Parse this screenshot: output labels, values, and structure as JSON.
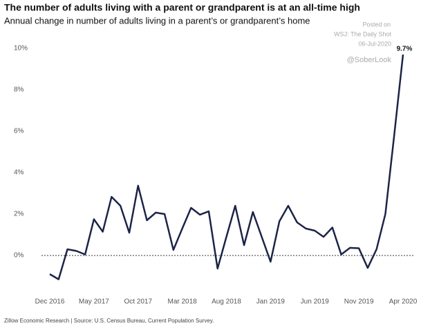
{
  "chart_data": {
    "type": "line",
    "title": "The number of adults living with a parent or grandparent is at an all-time high",
    "subtitle": "Annual change in number of adults living in a parent’s or grandparent’s home",
    "watermark": [
      "Posted on",
      "WSJ: The Daily Shot",
      "06-Jul-2020",
      "@SoberLook"
    ],
    "source": "Zillow Economic Research | Source: U.S. Census Bureau, Current Population Survey.",
    "categories": [
      "Dec 2016",
      null,
      null,
      null,
      null,
      "May 2017",
      null,
      null,
      null,
      null,
      "Oct 2017",
      null,
      null,
      null,
      null,
      "Mar 2018",
      null,
      null,
      null,
      null,
      "Aug 2018",
      null,
      null,
      null,
      null,
      "Jan 2019",
      null,
      null,
      null,
      null,
      "Jun 2019",
      null,
      null,
      null,
      null,
      "Nov 2019",
      null,
      null,
      null,
      null,
      "Apr 2020"
    ],
    "series": [
      {
        "name": "Annual change",
        "color": "#1b2447",
        "values": [
          -0.9,
          -1.15,
          0.3,
          0.22,
          0.05,
          1.75,
          1.15,
          2.83,
          2.4,
          1.1,
          3.37,
          1.7,
          2.07,
          2.0,
          0.27,
          1.3,
          2.3,
          1.97,
          2.13,
          -0.63,
          0.9,
          2.4,
          0.5,
          2.1,
          0.9,
          -0.3,
          1.65,
          2.4,
          1.6,
          1.3,
          1.2,
          0.9,
          1.35,
          0.05,
          0.37,
          0.35,
          -0.6,
          0.3,
          2.0,
          5.8,
          9.7
        ],
        "value_labels": [
          null,
          null,
          null,
          null,
          null,
          null,
          null,
          null,
          null,
          null,
          null,
          null,
          null,
          null,
          null,
          null,
          null,
          null,
          null,
          null,
          null,
          null,
          null,
          null,
          null,
          null,
          null,
          null,
          null,
          null,
          null,
          null,
          null,
          null,
          null,
          null,
          null,
          null,
          null,
          null,
          "9.7%"
        ]
      }
    ],
    "ylim": [
      -1.6,
      10.4
    ],
    "yticks": [
      {
        "value": 0,
        "label": "0%"
      },
      {
        "value": 2,
        "label": "2%"
      },
      {
        "value": 4,
        "label": "4%"
      },
      {
        "value": 6,
        "label": "6%"
      },
      {
        "value": 8,
        "label": "8%"
      },
      {
        "value": 10,
        "label": "10%"
      }
    ],
    "zero_line": true
  }
}
